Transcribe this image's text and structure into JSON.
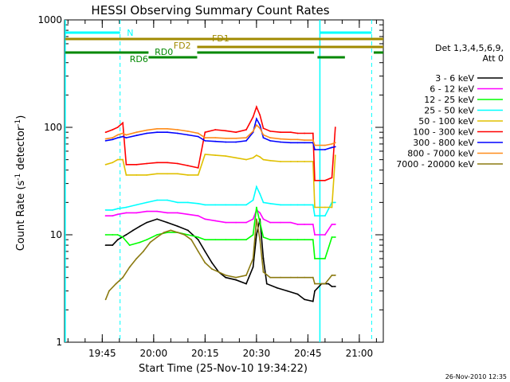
{
  "chart_data": {
    "type": "line",
    "title": "HESSI Observing Summary Count Rates",
    "xlabel": "Start Time (25-Nov-10 19:34:22)",
    "ylabel_main": "Count Rate (s",
    "ylabel_sup1": "-1",
    "ylabel_mid": " detector",
    "ylabel_sup2": "-1",
    "ylabel_end": ")",
    "yscale": "log",
    "ylim": [
      1,
      1000
    ],
    "xlim_minutes": [
      0,
      93
    ],
    "x_ticks": [
      {
        "label": "19:45",
        "minute": 11
      },
      {
        "label": "20:00",
        "minute": 26
      },
      {
        "label": "20:15",
        "minute": 41
      },
      {
        "label": "20:30",
        "minute": 56
      },
      {
        "label": "20:45",
        "minute": 71
      },
      {
        "label": "21:00",
        "minute": 86
      }
    ],
    "y_ticks": [
      {
        "label": "1",
        "value": 1
      },
      {
        "label": "10",
        "value": 10
      },
      {
        "label": "100",
        "value": 100
      },
      {
        "label": "1000",
        "value": 1000
      }
    ],
    "legend": {
      "placement": "right",
      "header": [
        "Det 1,3,4,5,6,9,",
        "Att 0"
      ]
    },
    "series": [
      {
        "name": "3 - 6 keV",
        "color": "#000000",
        "points": [
          [
            12,
            8
          ],
          [
            14,
            8
          ],
          [
            15.5,
            9
          ],
          [
            18,
            10
          ],
          [
            20,
            11
          ],
          [
            22,
            12
          ],
          [
            24,
            13
          ],
          [
            27,
            14
          ],
          [
            30,
            13
          ],
          [
            33,
            12
          ],
          [
            36,
            11
          ],
          [
            39,
            9
          ],
          [
            41,
            7
          ],
          [
            43,
            5.5
          ],
          [
            45,
            4.5
          ],
          [
            47,
            4
          ],
          [
            50,
            3.8
          ],
          [
            53,
            3.5
          ],
          [
            55,
            5
          ],
          [
            56,
            10
          ],
          [
            57,
            14
          ],
          [
            58,
            6
          ],
          [
            59,
            3.5
          ],
          [
            62,
            3.2
          ],
          [
            65,
            3
          ],
          [
            68,
            2.8
          ],
          [
            70,
            2.5
          ],
          [
            72.5,
            2.4
          ],
          [
            73,
            3
          ],
          [
            75,
            3.5
          ],
          [
            77,
            3.5
          ],
          [
            78,
            3.3
          ],
          [
            79,
            3.3
          ]
        ]
      },
      {
        "name": "6 - 12 keV",
        "color": "#ff00ff",
        "points": [
          [
            12,
            15
          ],
          [
            14,
            15
          ],
          [
            15.5,
            15.5
          ],
          [
            18,
            16
          ],
          [
            21,
            16
          ],
          [
            24,
            16.5
          ],
          [
            27,
            16.5
          ],
          [
            30,
            16
          ],
          [
            33,
            16
          ],
          [
            36,
            15.5
          ],
          [
            39,
            15
          ],
          [
            41,
            14
          ],
          [
            44,
            13.5
          ],
          [
            47,
            13
          ],
          [
            50,
            13
          ],
          [
            53,
            13
          ],
          [
            55,
            14
          ],
          [
            56,
            17
          ],
          [
            57,
            16
          ],
          [
            58,
            14
          ],
          [
            60,
            13
          ],
          [
            63,
            13
          ],
          [
            66,
            13
          ],
          [
            68,
            12.5
          ],
          [
            70,
            12.5
          ],
          [
            72.5,
            12.5
          ],
          [
            73,
            10
          ],
          [
            76,
            10
          ],
          [
            78,
            12.5
          ],
          [
            79,
            12.5
          ]
        ]
      },
      {
        "name": "12 - 25 keV",
        "color": "#00ff00",
        "points": [
          [
            12,
            10
          ],
          [
            14,
            10
          ],
          [
            15.5,
            10
          ],
          [
            17,
            9.5
          ],
          [
            19,
            8
          ],
          [
            22,
            8.5
          ],
          [
            24,
            9
          ],
          [
            27,
            10
          ],
          [
            30,
            10.5
          ],
          [
            33,
            10.5
          ],
          [
            36,
            10
          ],
          [
            39,
            9.5
          ],
          [
            41,
            9
          ],
          [
            44,
            9
          ],
          [
            47,
            9
          ],
          [
            50,
            9
          ],
          [
            53,
            9
          ],
          [
            55,
            10
          ],
          [
            56,
            18
          ],
          [
            57,
            13
          ],
          [
            58,
            9.5
          ],
          [
            60,
            9
          ],
          [
            63,
            9
          ],
          [
            66,
            9
          ],
          [
            68,
            9
          ],
          [
            70,
            9
          ],
          [
            72.5,
            9
          ],
          [
            73,
            6
          ],
          [
            76,
            6
          ],
          [
            78,
            9.5
          ],
          [
            79,
            9.5
          ]
        ]
      },
      {
        "name": "25 - 50 keV",
        "color": "#00ffff",
        "points": [
          [
            12,
            17
          ],
          [
            14,
            17
          ],
          [
            15.5,
            17.5
          ],
          [
            18,
            18
          ],
          [
            21,
            19
          ],
          [
            24,
            20
          ],
          [
            27,
            21
          ],
          [
            30,
            21
          ],
          [
            33,
            20
          ],
          [
            36,
            20
          ],
          [
            39,
            19.5
          ],
          [
            41,
            19
          ],
          [
            44,
            19
          ],
          [
            47,
            19
          ],
          [
            50,
            19
          ],
          [
            53,
            19
          ],
          [
            55,
            21
          ],
          [
            56,
            28
          ],
          [
            57,
            24
          ],
          [
            58,
            20
          ],
          [
            60,
            19.5
          ],
          [
            63,
            19
          ],
          [
            66,
            19
          ],
          [
            68,
            19
          ],
          [
            70,
            19
          ],
          [
            72.5,
            19
          ],
          [
            73,
            15
          ],
          [
            76,
            15
          ],
          [
            78,
            20
          ],
          [
            79,
            20
          ]
        ]
      },
      {
        "name": "50 - 100 keV",
        "color": "#e0c000",
        "points": [
          [
            12,
            45
          ],
          [
            14,
            47
          ],
          [
            15.5,
            50
          ],
          [
            17,
            50
          ],
          [
            18,
            36
          ],
          [
            21,
            36
          ],
          [
            24,
            36
          ],
          [
            27,
            37
          ],
          [
            30,
            37
          ],
          [
            33,
            37
          ],
          [
            36,
            36
          ],
          [
            39,
            36
          ],
          [
            41,
            56
          ],
          [
            44,
            55
          ],
          [
            47,
            54
          ],
          [
            50,
            52
          ],
          [
            53,
            50
          ],
          [
            55,
            52
          ],
          [
            56,
            55
          ],
          [
            57,
            53
          ],
          [
            58,
            50
          ],
          [
            60,
            49
          ],
          [
            63,
            48
          ],
          [
            66,
            48
          ],
          [
            68,
            48
          ],
          [
            70,
            48
          ],
          [
            72.5,
            48
          ],
          [
            73,
            18
          ],
          [
            76,
            18
          ],
          [
            78,
            18
          ],
          [
            79,
            55
          ]
        ]
      },
      {
        "name": "100 - 300 keV",
        "color": "#ff0000",
        "points": [
          [
            12,
            90
          ],
          [
            14,
            95
          ],
          [
            15.5,
            100
          ],
          [
            17,
            110
          ],
          [
            18,
            45
          ],
          [
            21,
            45
          ],
          [
            24,
            46
          ],
          [
            27,
            47
          ],
          [
            30,
            47
          ],
          [
            33,
            46
          ],
          [
            36,
            44
          ],
          [
            39,
            42
          ],
          [
            41,
            90
          ],
          [
            44,
            95
          ],
          [
            47,
            93
          ],
          [
            50,
            90
          ],
          [
            53,
            95
          ],
          [
            55,
            125
          ],
          [
            56,
            155
          ],
          [
            57,
            130
          ],
          [
            58,
            98
          ],
          [
            60,
            92
          ],
          [
            63,
            90
          ],
          [
            66,
            90
          ],
          [
            68,
            88
          ],
          [
            70,
            88
          ],
          [
            72.5,
            88
          ],
          [
            73,
            32
          ],
          [
            76,
            32
          ],
          [
            78,
            34
          ],
          [
            79,
            100
          ]
        ]
      },
      {
        "name": "300 - 800 keV",
        "color": "#0000ff",
        "points": [
          [
            12,
            75
          ],
          [
            14,
            77
          ],
          [
            15.5,
            80
          ],
          [
            17,
            82
          ],
          [
            18,
            80
          ],
          [
            21,
            84
          ],
          [
            24,
            88
          ],
          [
            27,
            90
          ],
          [
            30,
            90
          ],
          [
            33,
            88
          ],
          [
            36,
            85
          ],
          [
            39,
            82
          ],
          [
            41,
            75
          ],
          [
            44,
            74
          ],
          [
            47,
            73
          ],
          [
            50,
            73
          ],
          [
            53,
            75
          ],
          [
            55,
            90
          ],
          [
            56,
            120
          ],
          [
            57,
            105
          ],
          [
            58,
            80
          ],
          [
            60,
            75
          ],
          [
            63,
            73
          ],
          [
            66,
            72
          ],
          [
            68,
            72
          ],
          [
            70,
            72
          ],
          [
            72.5,
            72
          ],
          [
            73,
            62
          ],
          [
            76,
            62
          ],
          [
            78,
            65
          ],
          [
            79,
            66
          ]
        ]
      },
      {
        "name": "800 - 7000 keV",
        "color": "#ff8c1a",
        "points": [
          [
            12,
            78
          ],
          [
            14,
            80
          ],
          [
            15.5,
            85
          ],
          [
            17,
            88
          ],
          [
            18,
            85
          ],
          [
            21,
            90
          ],
          [
            24,
            94
          ],
          [
            27,
            97
          ],
          [
            30,
            97
          ],
          [
            33,
            95
          ],
          [
            36,
            92
          ],
          [
            39,
            88
          ],
          [
            41,
            80
          ],
          [
            44,
            80
          ],
          [
            47,
            79
          ],
          [
            50,
            79
          ],
          [
            53,
            80
          ],
          [
            55,
            92
          ],
          [
            56,
            105
          ],
          [
            57,
            98
          ],
          [
            58,
            85
          ],
          [
            60,
            80
          ],
          [
            63,
            78
          ],
          [
            66,
            77
          ],
          [
            68,
            77
          ],
          [
            70,
            76
          ],
          [
            72.5,
            76
          ],
          [
            73,
            68
          ],
          [
            76,
            68
          ],
          [
            78,
            70
          ],
          [
            79,
            72
          ]
        ]
      },
      {
        "name": "7000 - 20000 keV",
        "color": "#8b7a10",
        "points": [
          [
            12,
            2.5
          ],
          [
            13,
            3
          ],
          [
            15,
            3.5
          ],
          [
            17,
            4
          ],
          [
            19,
            5
          ],
          [
            21,
            6
          ],
          [
            23,
            7
          ],
          [
            25,
            8.5
          ],
          [
            27,
            9.5
          ],
          [
            29,
            10.5
          ],
          [
            31,
            11
          ],
          [
            33,
            10.5
          ],
          [
            35,
            10
          ],
          [
            37,
            9
          ],
          [
            39,
            7
          ],
          [
            41,
            5.5
          ],
          [
            43,
            4.8
          ],
          [
            45,
            4.5
          ],
          [
            47,
            4.2
          ],
          [
            50,
            4
          ],
          [
            53,
            4.2
          ],
          [
            55,
            6
          ],
          [
            56,
            14
          ],
          [
            57,
            9
          ],
          [
            58,
            4.5
          ],
          [
            60,
            4
          ],
          [
            63,
            4
          ],
          [
            66,
            4
          ],
          [
            68,
            4
          ],
          [
            70,
            4
          ],
          [
            72.5,
            4
          ],
          [
            73,
            3.5
          ],
          [
            76,
            3.5
          ],
          [
            78,
            4.2
          ],
          [
            79,
            4.2
          ]
        ]
      }
    ],
    "annotations": {
      "night_line_label": "N",
      "labels": [
        "FD1",
        "FD2",
        "RD0",
        "RD6"
      ]
    }
  },
  "timestamp": "26-Nov-2010 12:35"
}
